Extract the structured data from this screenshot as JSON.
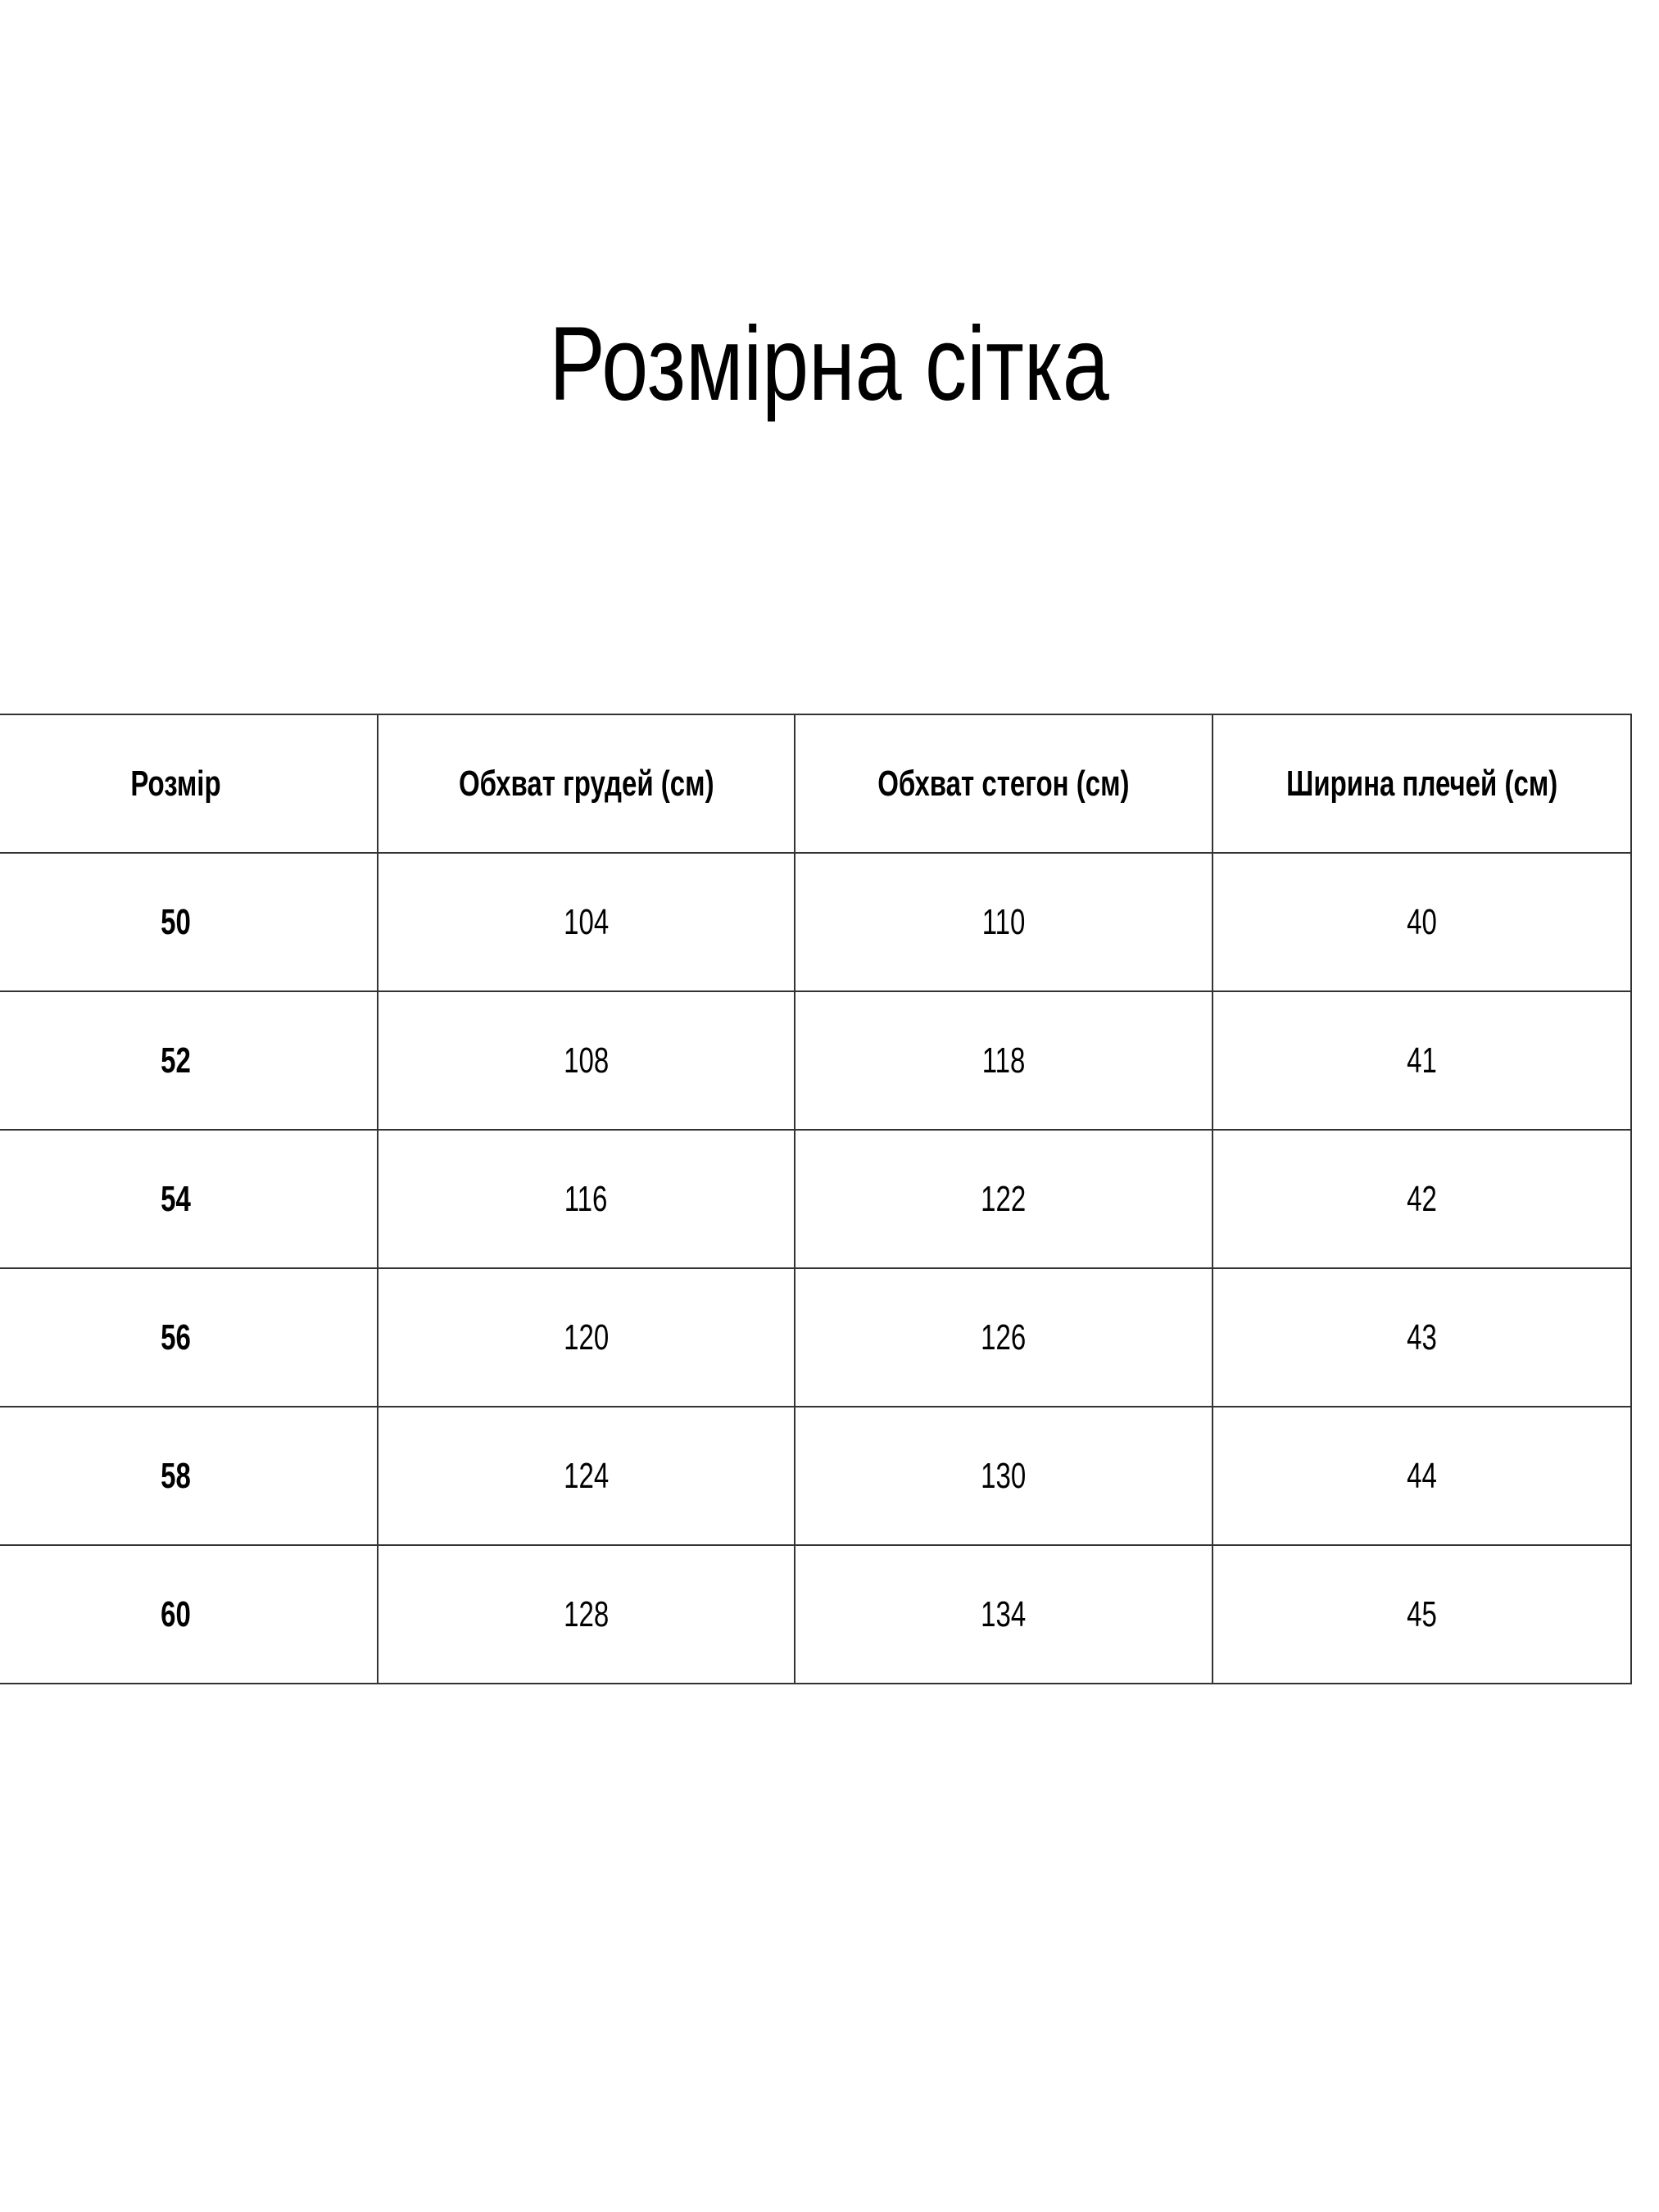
{
  "title": "Розмірна сітка",
  "table": {
    "headers": [
      "Розмір",
      "Обхват грудей (см)",
      "Обхват стегон (см)",
      "Ширина плечей (см)"
    ],
    "rows": [
      [
        "50",
        "104",
        "110",
        "40"
      ],
      [
        "52",
        "108",
        "118",
        "41"
      ],
      [
        "54",
        "116",
        "122",
        "42"
      ],
      [
        "56",
        "120",
        "126",
        "43"
      ],
      [
        "58",
        "124",
        "130",
        "44"
      ],
      [
        "60",
        "128",
        "134",
        "45"
      ]
    ]
  }
}
